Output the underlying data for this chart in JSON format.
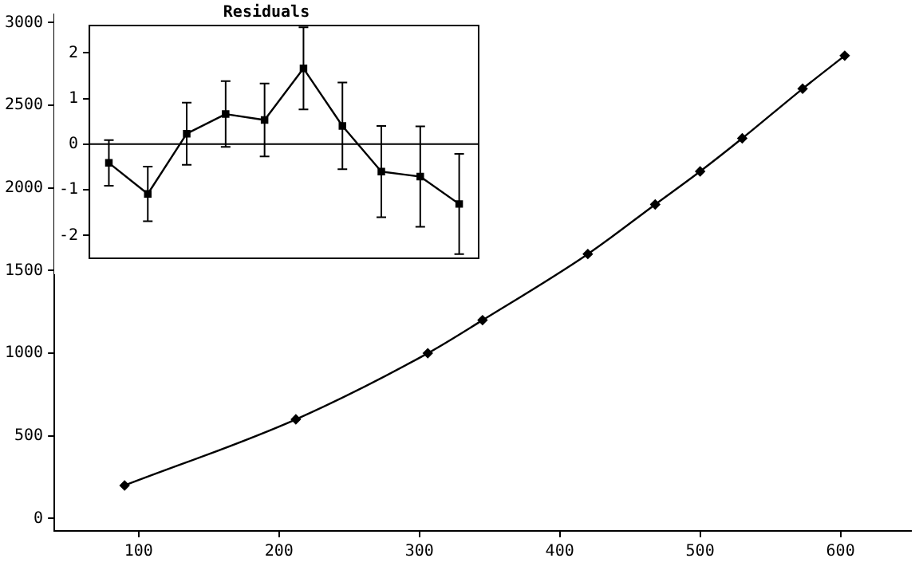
{
  "chart_data": [
    {
      "type": "line",
      "x": [
        90,
        212,
        306,
        345,
        420,
        468,
        500,
        530,
        573,
        603
      ],
      "values": [
        200,
        600,
        1000,
        1200,
        1600,
        1900,
        2100,
        2300,
        2600,
        2800
      ],
      "color": "#000000",
      "marker": "diamond",
      "xlim": [
        40,
        650
      ],
      "ylim": [
        -75,
        3050
      ],
      "xticks": [
        100,
        200,
        300,
        400,
        500,
        600
      ],
      "yticks": [
        0,
        500,
        1000,
        1500,
        2000,
        2500,
        3000
      ]
    },
    {
      "type": "line",
      "title": "Residuals",
      "categories": [
        null,
        null,
        null,
        null,
        null,
        null,
        null,
        null,
        null,
        null
      ],
      "values": [
        -0.41,
        -1.09,
        0.23,
        0.66,
        0.53,
        1.66,
        0.4,
        -0.6,
        -0.71,
        -1.31
      ],
      "errors": [
        0.5,
        0.6,
        0.68,
        0.72,
        0.8,
        0.9,
        0.95,
        1.0,
        1.1,
        1.1
      ],
      "color": "#000000",
      "marker": "square",
      "ylim": [
        -2.5,
        2.6
      ],
      "yticks": [
        -2,
        -1,
        0,
        1,
        2
      ],
      "tick_labels": "y",
      "ref_lines": [
        {
          "axis": "y",
          "value": 0
        }
      ]
    }
  ]
}
